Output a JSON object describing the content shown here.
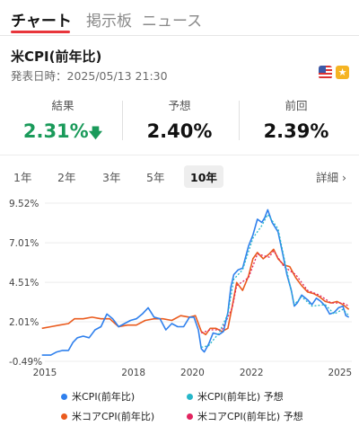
{
  "tabs": [
    {
      "label": "チャート",
      "active": true
    },
    {
      "label": "掲示板",
      "active": false
    },
    {
      "label": "ニュース",
      "active": false
    }
  ],
  "indicator": {
    "title": "米CPI(前年比)",
    "announce_label": "発表日時：",
    "announce_datetime": "2025/05/13 21:30",
    "flag_icon": "us-flag-icon",
    "badge_icon": "star-icon"
  },
  "stats": {
    "result": {
      "label": "結果",
      "value": "2.31%",
      "direction": "down"
    },
    "forecast": {
      "label": "予想",
      "value": "2.40%"
    },
    "previous": {
      "label": "前回",
      "value": "2.39%"
    }
  },
  "ranges": [
    {
      "label": "1年",
      "active": false
    },
    {
      "label": "2年",
      "active": false
    },
    {
      "label": "3年",
      "active": false
    },
    {
      "label": "5年",
      "active": false
    },
    {
      "label": "10年",
      "active": true
    }
  ],
  "detail_label": "詳細",
  "colors": {
    "accent": "#e8353b",
    "positive": "#1a9a5a",
    "cpi": "#2f80ed",
    "cpi_forecast": "#27b7c9",
    "core": "#ea5b1e",
    "core_forecast": "#e2245f"
  },
  "chart_data": {
    "type": "line",
    "y_ticks": [
      "9.52%",
      "7.01%",
      "4.51%",
      "2.01%",
      "-0.49%"
    ],
    "y_tick_values": [
      9.52,
      7.01,
      4.51,
      2.01,
      -0.49
    ],
    "x_ticks": [
      "2015",
      "2018",
      "2020",
      "2022",
      "2025"
    ],
    "x_tick_values": [
      2015.0,
      2018.0,
      2020.0,
      2022.0,
      2025.0
    ],
    "ylim": [
      -0.49,
      9.52
    ],
    "xlim": [
      2015.0,
      2025.4
    ],
    "grid": true,
    "legend_position": "bottom",
    "series": [
      {
        "name": "米CPI(前年比)",
        "color_key": "cpi",
        "dashed": false,
        "x": [
          2014.9,
          2015.0,
          2015.2,
          2015.4,
          2015.6,
          2015.8,
          2015.95,
          2016.1,
          2016.3,
          2016.5,
          2016.7,
          2016.9,
          2017.1,
          2017.3,
          2017.5,
          2017.7,
          2017.9,
          2018.1,
          2018.3,
          2018.5,
          2018.7,
          2018.9,
          2019.1,
          2019.3,
          2019.5,
          2019.7,
          2019.9,
          2020.05,
          2020.2,
          2020.3,
          2020.4,
          2020.55,
          2020.7,
          2020.9,
          2021.05,
          2021.2,
          2021.3,
          2021.4,
          2021.55,
          2021.7,
          2021.9,
          2022.05,
          2022.2,
          2022.35,
          2022.45,
          2022.55,
          2022.7,
          2022.9,
          2023.05,
          2023.2,
          2023.35,
          2023.45,
          2023.55,
          2023.7,
          2023.9,
          2024.05,
          2024.2,
          2024.35,
          2024.5,
          2024.65,
          2024.8,
          2024.95,
          2025.1,
          2025.2,
          2025.3
        ],
        "y": [
          -0.1,
          -0.1,
          -0.1,
          0.1,
          0.2,
          0.2,
          0.7,
          1.0,
          1.1,
          1.0,
          1.5,
          1.7,
          2.5,
          2.2,
          1.7,
          1.9,
          2.1,
          2.2,
          2.5,
          2.9,
          2.3,
          2.2,
          1.5,
          1.9,
          1.7,
          1.7,
          2.3,
          2.3,
          1.5,
          0.3,
          0.1,
          0.6,
          1.3,
          1.2,
          1.4,
          2.6,
          4.2,
          5.0,
          5.3,
          5.4,
          6.8,
          7.5,
          8.5,
          8.3,
          8.6,
          9.1,
          8.3,
          7.7,
          6.4,
          5.0,
          4.0,
          3.0,
          3.2,
          3.7,
          3.4,
          3.1,
          3.5,
          3.3,
          3.0,
          2.5,
          2.6,
          2.9,
          3.0,
          2.4,
          2.3
        ]
      },
      {
        "name": "米CPI(前年比) 予想",
        "color_key": "cpi_forecast",
        "dashed": true,
        "x": [
          2020.3,
          2020.55,
          2020.9,
          2021.2,
          2021.4,
          2021.7,
          2022.05,
          2022.35,
          2022.55,
          2022.9,
          2023.2,
          2023.45,
          2023.7,
          2024.05,
          2024.5,
          2024.8,
          2025.1,
          2025.3
        ],
        "y": [
          0.4,
          0.5,
          1.3,
          2.5,
          4.7,
          5.3,
          7.3,
          8.1,
          8.8,
          7.9,
          5.2,
          3.1,
          3.6,
          3.0,
          3.1,
          2.5,
          2.8,
          2.4
        ]
      },
      {
        "name": "米コアCPI(前年比)",
        "color_key": "core",
        "dashed": false,
        "x": [
          2014.9,
          2015.2,
          2015.5,
          2015.8,
          2016.0,
          2016.3,
          2016.6,
          2016.9,
          2017.2,
          2017.5,
          2017.8,
          2018.1,
          2018.4,
          2018.7,
          2019.0,
          2019.3,
          2019.6,
          2019.9,
          2020.1,
          2020.3,
          2020.45,
          2020.6,
          2020.8,
          2021.0,
          2021.2,
          2021.35,
          2021.5,
          2021.7,
          2021.9,
          2022.05,
          2022.2,
          2022.4,
          2022.6,
          2022.75,
          2022.9,
          2023.1,
          2023.3,
          2023.5,
          2023.7,
          2023.9,
          2024.1,
          2024.3,
          2024.5,
          2024.7,
          2024.9,
          2025.1,
          2025.3
        ],
        "y": [
          1.6,
          1.7,
          1.8,
          1.9,
          2.2,
          2.2,
          2.3,
          2.2,
          2.2,
          1.7,
          1.8,
          1.8,
          2.1,
          2.2,
          2.2,
          2.1,
          2.4,
          2.3,
          2.4,
          1.4,
          1.2,
          1.6,
          1.6,
          1.4,
          1.6,
          3.0,
          4.5,
          4.0,
          4.9,
          6.0,
          6.4,
          6.0,
          6.3,
          6.6,
          6.0,
          5.6,
          5.5,
          4.8,
          4.3,
          3.9,
          3.8,
          3.6,
          3.3,
          3.2,
          3.3,
          3.1,
          2.8
        ]
      },
      {
        "name": "米コアCPI(前年比) 予想",
        "color_key": "core_forecast",
        "dashed": true,
        "x": [
          2020.3,
          2020.6,
          2021.0,
          2021.35,
          2021.5,
          2021.9,
          2022.2,
          2022.6,
          2022.75,
          2023.1,
          2023.5,
          2023.9,
          2024.3,
          2024.7,
          2025.1,
          2025.3
        ],
        "y": [
          1.3,
          1.5,
          1.5,
          2.9,
          4.3,
          4.8,
          6.3,
          6.1,
          6.5,
          5.5,
          5.0,
          4.0,
          3.7,
          3.2,
          3.2,
          3.0
        ]
      }
    ]
  },
  "legend": [
    {
      "label": "米CPI(前年比)",
      "color_key": "cpi"
    },
    {
      "label": "米CPI(前年比) 予想",
      "color_key": "cpi_forecast"
    },
    {
      "label": "米コアCPI(前年比)",
      "color_key": "core"
    },
    {
      "label": "米コアCPI(前年比) 予想",
      "color_key": "core_forecast"
    }
  ]
}
